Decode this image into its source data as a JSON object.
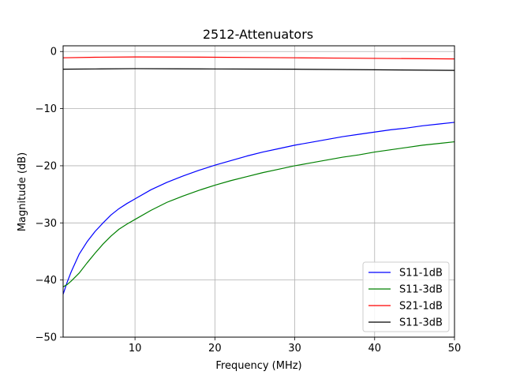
{
  "chart_data": {
    "type": "line",
    "title": "2512-Attenuators",
    "xlabel": "Frequency (MHz)",
    "ylabel": "Magnitude (dB)",
    "xlim": [
      1,
      50
    ],
    "ylim": [
      -50,
      1
    ],
    "xticks": [
      10,
      20,
      30,
      40,
      50
    ],
    "yticks": [
      0,
      -10,
      -20,
      -30,
      -40,
      -50
    ],
    "xtick_labels": [
      "10",
      "20",
      "30",
      "40",
      "50"
    ],
    "ytick_labels": [
      "0",
      "−10",
      "−20",
      "−30",
      "−40",
      "−50"
    ],
    "grid": true,
    "legend_position": "lower-right",
    "series": [
      {
        "name": "S11-1dB",
        "color": "#0000ff",
        "x": [
          1,
          1.5,
          2,
          3,
          4,
          5,
          6,
          7,
          8,
          9,
          10,
          12,
          14,
          16,
          18,
          20,
          22,
          24,
          26,
          28,
          30,
          32,
          34,
          36,
          38,
          40,
          42,
          44,
          46,
          48,
          50
        ],
        "y": [
          -42.5,
          -40.4,
          -38.6,
          -35.5,
          -33.3,
          -31.5,
          -30.0,
          -28.6,
          -27.5,
          -26.6,
          -25.8,
          -24.2,
          -22.9,
          -21.8,
          -20.8,
          -19.9,
          -19.1,
          -18.3,
          -17.6,
          -17.0,
          -16.4,
          -15.9,
          -15.4,
          -14.9,
          -14.5,
          -14.1,
          -13.7,
          -13.4,
          -13.0,
          -12.7,
          -12.4
        ]
      },
      {
        "name": "S11-3dB",
        "color": "#008000",
        "x": [
          1,
          1.5,
          2,
          3,
          4,
          5,
          6,
          7,
          8,
          9,
          10,
          12,
          14,
          16,
          18,
          20,
          22,
          24,
          26,
          28,
          30,
          32,
          34,
          36,
          38,
          40,
          42,
          44,
          46,
          48,
          50
        ],
        "y": [
          -41.2,
          -40.8,
          -40.2,
          -38.8,
          -37.0,
          -35.3,
          -33.7,
          -32.3,
          -31.1,
          -30.2,
          -29.4,
          -27.8,
          -26.4,
          -25.3,
          -24.3,
          -23.4,
          -22.6,
          -21.9,
          -21.2,
          -20.6,
          -20.0,
          -19.5,
          -19.0,
          -18.5,
          -18.1,
          -17.6,
          -17.2,
          -16.8,
          -16.4,
          -16.1,
          -15.8
        ]
      },
      {
        "name": "S21-1dB",
        "color": "#ff0000",
        "x": [
          1,
          5,
          10,
          15,
          20,
          25,
          30,
          35,
          40,
          45,
          50
        ],
        "y": [
          -1.1,
          -1.0,
          -0.95,
          -0.97,
          -1.0,
          -1.05,
          -1.1,
          -1.15,
          -1.2,
          -1.25,
          -1.3
        ]
      },
      {
        "name": "S11-3dB",
        "color": "#000000",
        "x": [
          1,
          5,
          10,
          15,
          20,
          25,
          30,
          35,
          40,
          45,
          50
        ],
        "y": [
          -3.1,
          -3.05,
          -3.0,
          -3.02,
          -3.05,
          -3.08,
          -3.1,
          -3.15,
          -3.2,
          -3.25,
          -3.3
        ]
      }
    ]
  }
}
